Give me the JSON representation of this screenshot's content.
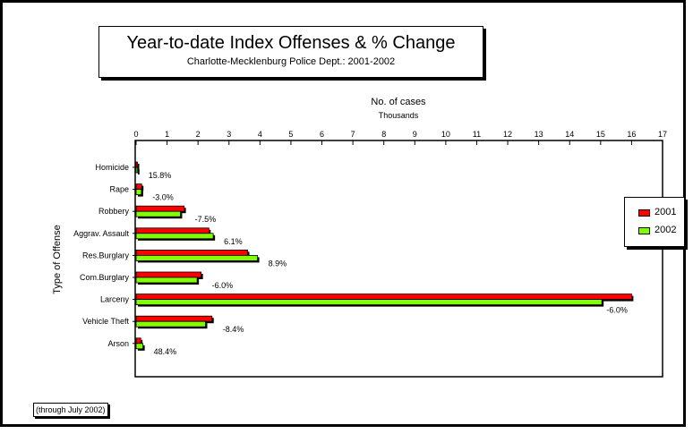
{
  "chart_data": {
    "type": "bar",
    "orientation": "horizontal",
    "title": "Year-to-date Index Offenses & % Change",
    "subtitle": "Charlotte-Mecklenburg Police Dept.: 2001-2002",
    "xlabel": "No. of cases",
    "xlabel_units": "Thousands",
    "ylabel": "Type of Offense",
    "xlim": [
      0,
      17
    ],
    "xticks": [
      "0",
      "1",
      "2",
      "3",
      "4",
      "5",
      "6",
      "7",
      "8",
      "9",
      "10",
      "11",
      "12",
      "13",
      "14",
      "15",
      "16",
      "17"
    ],
    "categories": [
      "Homicide",
      "Rape",
      "Robbery",
      "Aggrav. Assault",
      "Res.Burglary",
      "Com.Burglary",
      "Larceny",
      "Vehicle Theft",
      "Arson"
    ],
    "series": [
      {
        "name": "2001",
        "color": "#ff0000",
        "values": [
          0.04,
          0.18,
          1.55,
          2.35,
          3.6,
          2.1,
          16.0,
          2.45,
          0.15
        ]
      },
      {
        "name": "2002",
        "color": "#80ff00",
        "values": [
          0.05,
          0.17,
          1.43,
          2.49,
          3.92,
          1.97,
          15.04,
          2.24,
          0.22
        ]
      }
    ],
    "pct_change_labels": [
      "15.8%",
      "-3.0%",
      "-7.5%",
      "6.1%",
      "8.9%",
      "-6.0%",
      "-6.0%",
      "-8.4%",
      "48.4%"
    ],
    "legend_position": "right",
    "grid": false,
    "footnote": "(through July 2002)"
  }
}
